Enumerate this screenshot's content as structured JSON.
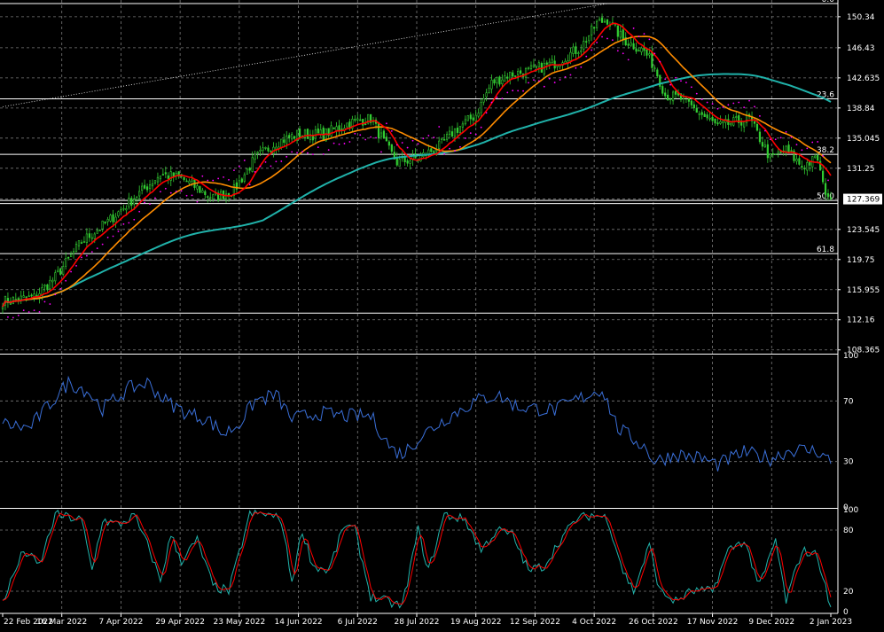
{
  "chart_data": {
    "type": "line",
    "main_panel": {
      "type": "candlestick",
      "y_ticks": [
        150.34,
        146.43,
        142.635,
        138.84,
        135.045,
        131.25,
        127.369,
        123.545,
        119.75,
        115.955,
        112.16,
        108.365
      ],
      "ylim": [
        108.0,
        152.0
      ],
      "current_price": 127.369,
      "fibonacci": [
        {
          "level": "0.0",
          "price": 152.0
        },
        {
          "level": "23.6",
          "price": 140.0
        },
        {
          "level": "38.2",
          "price": 133.0
        },
        {
          "level": "50.0",
          "price": 127.2
        },
        {
          "level": "61.8",
          "price": 120.5
        }
      ],
      "fibonacci_extra_lines": [
        126.8,
        113.0
      ],
      "trend_line": {
        "from": {
          "index": 0,
          "price": 139.0
        },
        "to": {
          "index": 230,
          "price": 152.0
        }
      },
      "series": [
        {
          "name": "close",
          "color": "#32cd32"
        },
        {
          "name": "ma_fast",
          "color": "#ff0000"
        },
        {
          "name": "ma_mid",
          "color": "#ff8c00"
        },
        {
          "name": "ma_slow",
          "color": "#20b2aa"
        },
        {
          "name": "parabolic_sar",
          "color": "#ff00ff"
        }
      ],
      "anchors": [
        [
          0,
          114.5
        ],
        [
          12,
          115.0
        ],
        [
          20,
          117.5
        ],
        [
          30,
          122.0
        ],
        [
          40,
          124.5
        ],
        [
          50,
          127.5
        ],
        [
          60,
          130.5
        ],
        [
          68,
          130.0
        ],
        [
          80,
          127.5
        ],
        [
          88,
          128.5
        ],
        [
          96,
          132.5
        ],
        [
          104,
          134.5
        ],
        [
          112,
          135.5
        ],
        [
          122,
          135.5
        ],
        [
          132,
          137.0
        ],
        [
          140,
          137.5
        ],
        [
          146,
          134.0
        ],
        [
          150,
          132.0
        ],
        [
          158,
          132.5
        ],
        [
          166,
          134.0
        ],
        [
          172,
          136.0
        ],
        [
          180,
          138.0
        ],
        [
          186,
          142.0
        ],
        [
          192,
          143.0
        ],
        [
          200,
          143.5
        ],
        [
          210,
          144.5
        ],
        [
          220,
          146.5
        ],
        [
          226,
          149.5
        ],
        [
          230,
          150.0
        ],
        [
          236,
          147.5
        ],
        [
          244,
          146.0
        ],
        [
          248,
          144.0
        ],
        [
          252,
          140.5
        ],
        [
          258,
          140.0
        ],
        [
          266,
          138.0
        ],
        [
          272,
          136.5
        ],
        [
          278,
          137.0
        ],
        [
          284,
          137.5
        ],
        [
          288,
          135.0
        ],
        [
          292,
          132.5
        ],
        [
          298,
          133.5
        ],
        [
          304,
          131.5
        ],
        [
          310,
          132.5
        ],
        [
          312,
          129.0
        ],
        [
          315,
          127.4
        ]
      ]
    },
    "rsi_panel": {
      "y_ticks": [
        100,
        70,
        30,
        0
      ],
      "ylim": [
        0,
        100
      ],
      "color": "#3a6fd8",
      "anchors": [
        [
          0,
          55
        ],
        [
          10,
          52
        ],
        [
          18,
          68
        ],
        [
          25,
          82
        ],
        [
          32,
          77
        ],
        [
          38,
          65
        ],
        [
          48,
          78
        ],
        [
          55,
          82
        ],
        [
          62,
          70
        ],
        [
          70,
          62
        ],
        [
          78,
          58
        ],
        [
          84,
          48
        ],
        [
          90,
          55
        ],
        [
          96,
          70
        ],
        [
          104,
          74
        ],
        [
          110,
          58
        ],
        [
          120,
          62
        ],
        [
          132,
          60
        ],
        [
          140,
          60
        ],
        [
          148,
          38
        ],
        [
          152,
          35
        ],
        [
          160,
          48
        ],
        [
          170,
          60
        ],
        [
          180,
          70
        ],
        [
          188,
          74
        ],
        [
          196,
          66
        ],
        [
          210,
          64
        ],
        [
          220,
          72
        ],
        [
          228,
          78
        ],
        [
          234,
          52
        ],
        [
          244,
          40
        ],
        [
          248,
          30
        ],
        [
          256,
          35
        ],
        [
          266,
          32
        ],
        [
          272,
          28
        ],
        [
          282,
          36
        ],
        [
          292,
          32
        ],
        [
          300,
          38
        ],
        [
          310,
          37
        ],
        [
          315,
          30
        ]
      ]
    },
    "stoch_panel": {
      "y_ticks": [
        100,
        80,
        20,
        0
      ],
      "ylim": [
        0,
        100
      ],
      "series": [
        {
          "name": "main",
          "color": "#20b2aa"
        },
        {
          "name": "signal",
          "color": "#ff0000"
        }
      ],
      "anchors": [
        [
          0,
          10
        ],
        [
          8,
          60
        ],
        [
          14,
          45
        ],
        [
          20,
          95
        ],
        [
          26,
          92
        ],
        [
          30,
          90
        ],
        [
          34,
          40
        ],
        [
          38,
          90
        ],
        [
          44,
          85
        ],
        [
          50,
          94
        ],
        [
          56,
          60
        ],
        [
          60,
          30
        ],
        [
          64,
          75
        ],
        [
          68,
          50
        ],
        [
          74,
          70
        ],
        [
          80,
          25
        ],
        [
          86,
          20
        ],
        [
          94,
          95
        ],
        [
          100,
          96
        ],
        [
          106,
          90
        ],
        [
          110,
          30
        ],
        [
          114,
          80
        ],
        [
          118,
          45
        ],
        [
          124,
          40
        ],
        [
          130,
          85
        ],
        [
          134,
          80
        ],
        [
          140,
          15
        ],
        [
          146,
          10
        ],
        [
          152,
          5
        ],
        [
          158,
          80
        ],
        [
          162,
          40
        ],
        [
          168,
          95
        ],
        [
          176,
          90
        ],
        [
          182,
          60
        ],
        [
          188,
          80
        ],
        [
          194,
          75
        ],
        [
          200,
          40
        ],
        [
          206,
          45
        ],
        [
          212,
          70
        ],
        [
          218,
          90
        ],
        [
          224,
          95
        ],
        [
          230,
          92
        ],
        [
          236,
          40
        ],
        [
          240,
          20
        ],
        [
          246,
          65
        ],
        [
          250,
          20
        ],
        [
          256,
          10
        ],
        [
          262,
          20
        ],
        [
          270,
          20
        ],
        [
          276,
          60
        ],
        [
          282,
          70
        ],
        [
          288,
          25
        ],
        [
          294,
          70
        ],
        [
          298,
          10
        ],
        [
          304,
          60
        ],
        [
          310,
          55
        ],
        [
          315,
          2
        ]
      ]
    },
    "x_labels": [
      "22 Feb 2022",
      "16 Mar 2022",
      "7 Apr 2022",
      "29 Apr 2022",
      "23 May 2022",
      "14 Jun 2022",
      "6 Jul 2022",
      "28 Jul 2022",
      "19 Aug 2022",
      "12 Sep 2022",
      "4 Oct 2022",
      "26 Oct 2022",
      "17 Nov 2022",
      "9 Dec 2022",
      "2 Jan 2023"
    ]
  }
}
